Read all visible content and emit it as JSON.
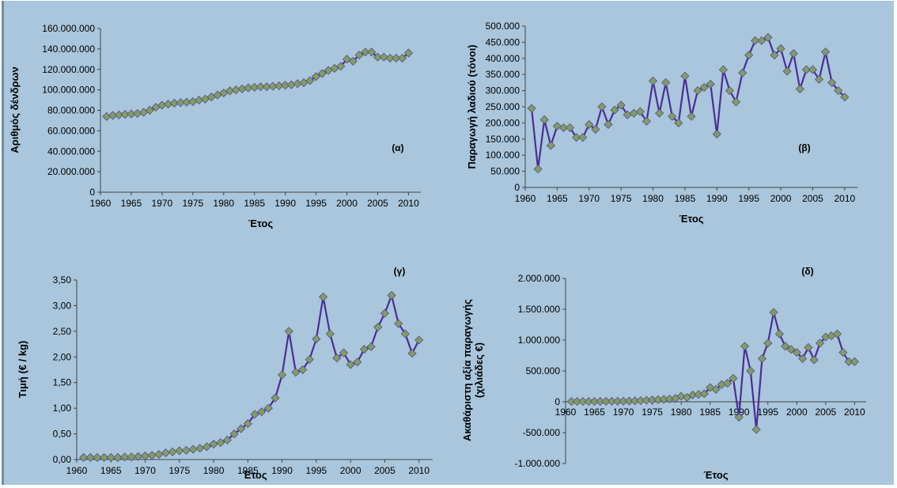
{
  "colors": {
    "background": "#a9c6dc",
    "line": "#4b2d96",
    "marker_fill": "#7f9f62",
    "marker_stroke": "#5c4a8a",
    "axis": "#444444"
  },
  "chart_data": [
    {
      "id": "a",
      "type": "line",
      "panel_label": "(α)",
      "xlabel": "Έτος",
      "ylabel": "Αριθμός δένδρων",
      "xlim": [
        1960,
        2012
      ],
      "ylim": [
        0,
        160000000
      ],
      "xticks": [
        1960,
        1965,
        1970,
        1975,
        1980,
        1985,
        1990,
        1995,
        2000,
        2005,
        2010
      ],
      "xtick_labels": [
        "1960",
        "1965",
        "1970",
        "1975",
        "1980",
        "1985",
        "1990",
        "1995",
        "2000",
        "2005",
        "2010"
      ],
      "yticks": [
        0,
        20000000,
        40000000,
        60000000,
        80000000,
        100000000,
        120000000,
        140000000,
        160000000
      ],
      "ytick_labels": [
        "0",
        "20.000.000",
        "40.000.000",
        "60.000.000",
        "80.000.000",
        "100.000.000",
        "120.000.000",
        "140.000.000",
        "160.000.000"
      ],
      "x": [
        1961,
        1962,
        1963,
        1964,
        1965,
        1966,
        1967,
        1968,
        1969,
        1970,
        1971,
        1972,
        1973,
        1974,
        1975,
        1976,
        1977,
        1978,
        1979,
        1980,
        1981,
        1982,
        1983,
        1984,
        1985,
        1986,
        1987,
        1988,
        1989,
        1990,
        1991,
        1992,
        1993,
        1994,
        1995,
        1996,
        1997,
        1998,
        1999,
        2000,
        2001,
        2002,
        2003,
        2004,
        2005,
        2006,
        2007,
        2008,
        2009,
        2010
      ],
      "y": [
        74000000,
        75000000,
        75500000,
        76000000,
        76500000,
        77000000,
        78000000,
        80000000,
        83000000,
        85000000,
        86000000,
        87000000,
        87500000,
        88000000,
        88500000,
        90000000,
        91000000,
        93000000,
        95000000,
        97000000,
        99000000,
        100000000,
        101000000,
        102000000,
        102500000,
        103000000,
        103000000,
        103500000,
        104000000,
        104500000,
        105000000,
        106000000,
        107000000,
        109000000,
        113000000,
        116000000,
        119000000,
        121000000,
        123000000,
        130000000,
        128000000,
        134000000,
        137000000,
        137000000,
        132000000,
        132000000,
        131000000,
        131000000,
        131000000,
        136000000
      ]
    },
    {
      "id": "b",
      "type": "line",
      "panel_label": "(β)",
      "xlabel": "Έτος",
      "ylabel": "Παραγωγή λαδιού (τόνοι)",
      "xlim": [
        1960,
        2012
      ],
      "ylim": [
        0,
        500000
      ],
      "xticks": [
        1960,
        1965,
        1970,
        1975,
        1980,
        1985,
        1990,
        1995,
        2000,
        2005,
        2010
      ],
      "xtick_labels": [
        "1960",
        "1965",
        "1970",
        "1975",
        "1980",
        "1985",
        "1990",
        "1995",
        "2000",
        "2005",
        "2010"
      ],
      "yticks": [
        0,
        50000,
        100000,
        150000,
        200000,
        250000,
        300000,
        350000,
        400000,
        450000,
        500000
      ],
      "ytick_labels": [
        "0",
        "50.000",
        "100.000",
        "150.000",
        "200.000",
        "250.000",
        "300.000",
        "350.000",
        "400.000",
        "450.000",
        "500.000"
      ],
      "x": [
        1961,
        1962,
        1963,
        1964,
        1965,
        1966,
        1967,
        1968,
        1969,
        1970,
        1971,
        1972,
        1973,
        1974,
        1975,
        1976,
        1977,
        1978,
        1979,
        1980,
        1981,
        1982,
        1983,
        1984,
        1985,
        1986,
        1987,
        1988,
        1989,
        1990,
        1991,
        1992,
        1993,
        1994,
        1995,
        1996,
        1997,
        1998,
        1999,
        2000,
        2001,
        2002,
        2003,
        2004,
        2005,
        2006,
        2007,
        2008,
        2009,
        2010
      ],
      "y": [
        245000,
        57000,
        210000,
        130000,
        190000,
        185000,
        185000,
        155000,
        155000,
        195000,
        180000,
        250000,
        195000,
        240000,
        255000,
        225000,
        230000,
        235000,
        205000,
        330000,
        230000,
        325000,
        220000,
        200000,
        345000,
        220000,
        300000,
        310000,
        320000,
        165000,
        365000,
        300000,
        265000,
        355000,
        410000,
        455000,
        455000,
        465000,
        410000,
        430000,
        360000,
        415000,
        305000,
        365000,
        365000,
        335000,
        420000,
        325000,
        300000,
        280000
      ]
    },
    {
      "id": "c",
      "type": "line",
      "panel_label": "(γ)",
      "xlabel": "Έτος",
      "ylabel": "Τιμή (€ / kg)",
      "xlim": [
        1960,
        2012
      ],
      "ylim": [
        0,
        3.5
      ],
      "xticks": [
        1960,
        1965,
        1970,
        1975,
        1980,
        1985,
        1990,
        1995,
        2000,
        2005,
        2010
      ],
      "xtick_labels": [
        "1960",
        "1965",
        "1970",
        "1975",
        "1980",
        "1985",
        "1990",
        "1995",
        "2000",
        "2005",
        "2010"
      ],
      "yticks": [
        0,
        0.5,
        1,
        1.5,
        2,
        2.5,
        3,
        3.5
      ],
      "ytick_labels": [
        "0,00",
        "0,50",
        "1,00",
        "1,50",
        "2,00",
        "2,50",
        "3,00",
        "3,50"
      ],
      "x": [
        1961,
        1962,
        1963,
        1964,
        1965,
        1966,
        1967,
        1968,
        1969,
        1970,
        1971,
        1972,
        1973,
        1974,
        1975,
        1976,
        1977,
        1978,
        1979,
        1980,
        1981,
        1982,
        1983,
        1984,
        1985,
        1986,
        1987,
        1988,
        1989,
        1990,
        1991,
        1992,
        1993,
        1994,
        1995,
        1996,
        1997,
        1998,
        1999,
        2000,
        2001,
        2002,
        2003,
        2004,
        2005,
        2006,
        2007,
        2008,
        2009,
        2010
      ],
      "y": [
        0.04,
        0.04,
        0.04,
        0.04,
        0.04,
        0.04,
        0.05,
        0.05,
        0.06,
        0.07,
        0.08,
        0.1,
        0.13,
        0.15,
        0.17,
        0.18,
        0.2,
        0.22,
        0.25,
        0.3,
        0.33,
        0.38,
        0.5,
        0.6,
        0.7,
        0.88,
        0.93,
        1.0,
        1.2,
        1.65,
        2.5,
        1.7,
        1.75,
        1.95,
        2.35,
        3.17,
        2.45,
        1.98,
        2.08,
        1.85,
        1.9,
        2.15,
        2.2,
        2.58,
        2.85,
        3.2,
        2.65,
        2.45,
        2.07,
        2.33
      ]
    },
    {
      "id": "d",
      "type": "line",
      "panel_label": "(δ)",
      "xlabel": "Έτος",
      "ylabel": "Ακαθάριστη αξία παραγωγής",
      "ylabel2": "(χιλιάδες €)",
      "xlim": [
        1960,
        2012
      ],
      "ylim": [
        -1000000,
        2000000
      ],
      "xticks": [
        1960,
        1965,
        1970,
        1975,
        1980,
        1985,
        1990,
        1995,
        2000,
        2005,
        2010
      ],
      "xtick_labels": [
        "1960",
        "1965",
        "1970",
        "1975",
        "1980",
        "1985",
        "1990",
        "1995",
        "2000",
        "2005",
        "2010"
      ],
      "yticks": [
        -1000000,
        -500000,
        0,
        500000,
        1000000,
        1500000,
        2000000
      ],
      "ytick_labels": [
        "-1.000.000",
        "-500.000",
        "0",
        "500.000",
        "1.000.000",
        "1.500.000",
        "2.000.000"
      ],
      "x": [
        1961,
        1962,
        1963,
        1964,
        1965,
        1966,
        1967,
        1968,
        1969,
        1970,
        1971,
        1972,
        1973,
        1974,
        1975,
        1976,
        1977,
        1978,
        1979,
        1980,
        1981,
        1982,
        1983,
        1984,
        1985,
        1986,
        1987,
        1988,
        1989,
        1990,
        1991,
        1992,
        1993,
        1994,
        1995,
        1996,
        1997,
        1998,
        1999,
        2000,
        2001,
        2002,
        2003,
        2004,
        2005,
        2006,
        2007,
        2008,
        2009,
        2010
      ],
      "y": [
        5000,
        5000,
        5000,
        5000,
        5000,
        6000,
        7000,
        8000,
        9000,
        10000,
        12000,
        15000,
        18000,
        25000,
        30000,
        35000,
        40000,
        45000,
        55000,
        90000,
        70000,
        110000,
        120000,
        130000,
        230000,
        200000,
        280000,
        300000,
        380000,
        -250000,
        900000,
        500000,
        -450000,
        700000,
        950000,
        1450000,
        1100000,
        900000,
        850000,
        800000,
        700000,
        880000,
        680000,
        950000,
        1050000,
        1070000,
        1100000,
        800000,
        650000,
        650000
      ]
    }
  ]
}
